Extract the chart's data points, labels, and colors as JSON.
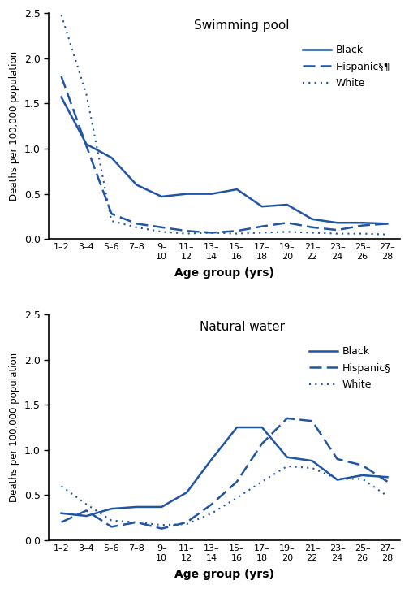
{
  "age_labels_line1": [
    "1–2",
    "3–4",
    "5–6",
    "7–8",
    "9–",
    "11–",
    "13–",
    "15–",
    "17–",
    "19–",
    "21–",
    "23–",
    "25–",
    "27–"
  ],
  "age_labels_line2": [
    "",
    "",
    "",
    "",
    "10",
    "12",
    "14",
    "16",
    "18",
    "20",
    "22",
    "24",
    "26",
    "28"
  ],
  "pool": {
    "title": "Swimming pool",
    "black": [
      1.57,
      1.05,
      0.9,
      0.6,
      0.47,
      0.5,
      0.5,
      0.55,
      0.36,
      0.38,
      0.22,
      0.18,
      0.18,
      0.17
    ],
    "hispanic": [
      1.8,
      1.03,
      0.28,
      0.17,
      0.13,
      0.09,
      0.07,
      0.09,
      0.14,
      0.18,
      0.13,
      0.1,
      0.15,
      0.17
    ],
    "white": [
      2.48,
      1.6,
      0.2,
      0.13,
      0.08,
      0.06,
      0.07,
      0.06,
      0.07,
      0.08,
      0.07,
      0.06,
      0.06,
      0.05
    ],
    "legend_black": "Black",
    "legend_hispanic": "Hispanic§¶",
    "legend_white": "White"
  },
  "natural": {
    "title": "Natural water",
    "black": [
      0.3,
      0.27,
      0.35,
      0.37,
      0.37,
      0.53,
      0.9,
      1.25,
      1.25,
      0.92,
      0.88,
      0.67,
      0.72,
      0.7
    ],
    "hispanic": [
      0.2,
      0.33,
      0.15,
      0.2,
      0.13,
      0.2,
      0.4,
      0.65,
      1.07,
      1.35,
      1.32,
      0.9,
      0.83,
      0.65
    ],
    "white": [
      0.6,
      0.4,
      0.22,
      0.2,
      0.17,
      0.18,
      0.3,
      0.47,
      0.65,
      0.82,
      0.8,
      0.68,
      0.68,
      0.49
    ],
    "legend_black": "Black",
    "legend_hispanic": "Hispanic§",
    "legend_white": "White"
  },
  "line_color": "#2155a3",
  "ylabel": "Deaths per 100,000 population",
  "xlabel": "Age group (yrs)",
  "ylim": [
    0.0,
    2.5
  ],
  "yticks": [
    0.0,
    0.5,
    1.0,
    1.5,
    2.0,
    2.5
  ]
}
